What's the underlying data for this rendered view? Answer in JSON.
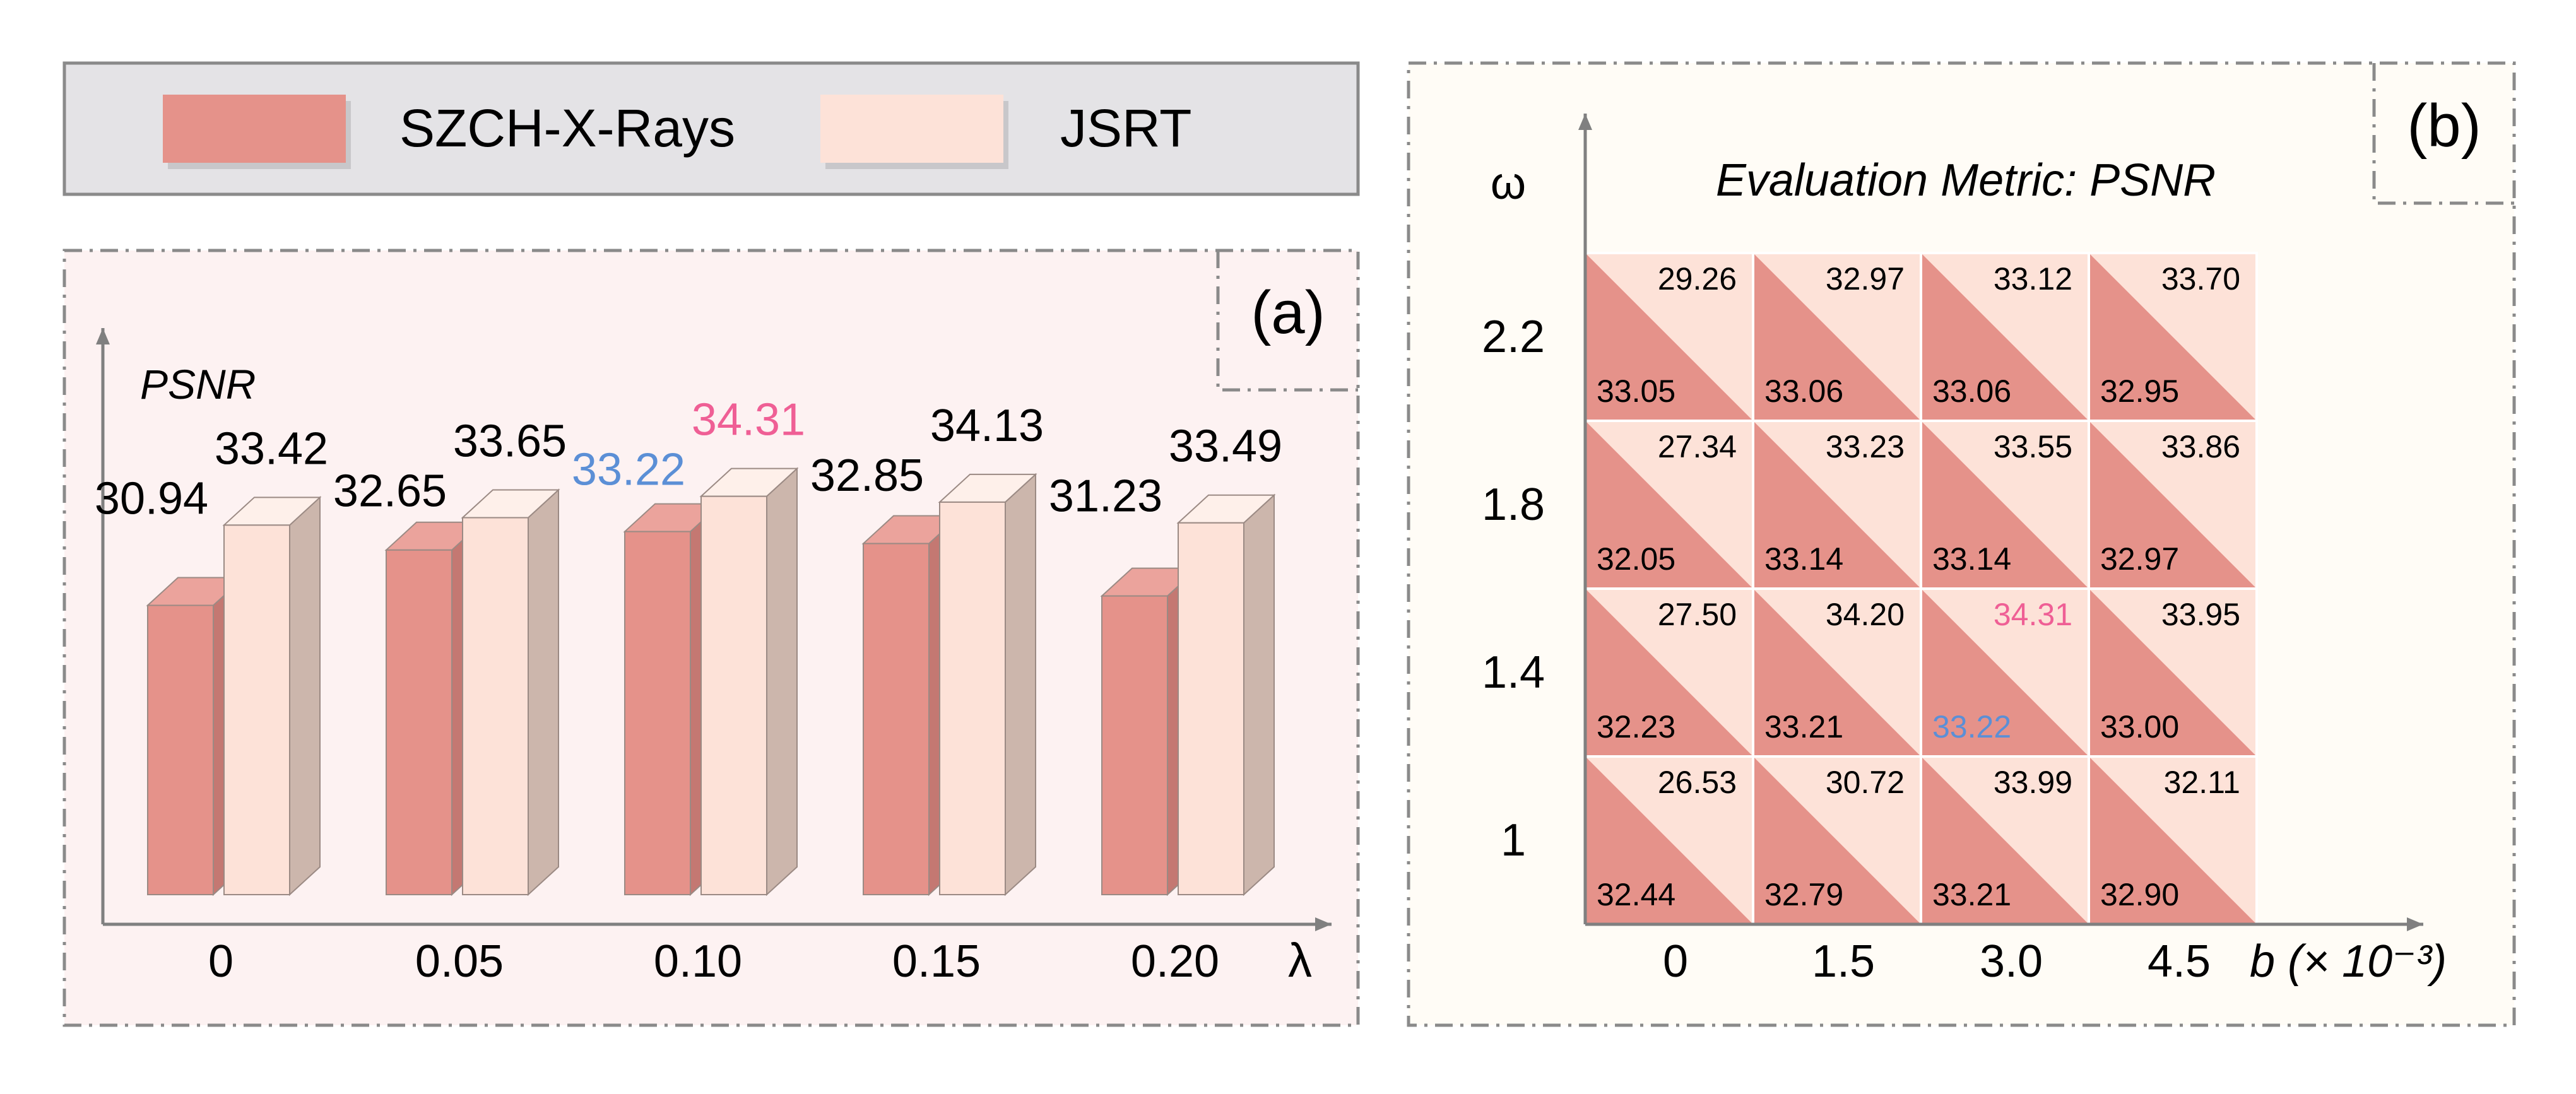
{
  "legend": {
    "items": [
      {
        "label": "SZCH-X-Rays",
        "color": "#e5928a"
      },
      {
        "label": "JSRT",
        "color": "#fde2d8"
      }
    ]
  },
  "colors": {
    "szch": "#e5928a",
    "szch_dark": "#c47872",
    "jsrt": "#fde2d8",
    "jsrt_side": "#ccb6ac",
    "panel_a_bg": "#fdf2f2",
    "panel_b_bg": "#fffcf6",
    "legend_bg": "#e4e3e6",
    "highlight_pink": "#ef5f95",
    "highlight_blue": "#5b8fd6",
    "axis": "#808080"
  },
  "panel_a": {
    "tag": "(a)"
  },
  "panel_b": {
    "tag": "(b)"
  },
  "chart_data": [
    {
      "type": "bar",
      "panel": "(a)",
      "ylabel": "PSNR",
      "xlabel": "λ",
      "categories": [
        "0",
        "0.05",
        "0.10",
        "0.15",
        "0.20"
      ],
      "series": [
        {
          "name": "SZCH-X-Rays",
          "values": [
            30.94,
            32.65,
            33.22,
            32.85,
            31.23
          ]
        },
        {
          "name": "JSRT",
          "values": [
            33.42,
            33.65,
            34.31,
            34.13,
            33.49
          ]
        }
      ],
      "value_labels": {
        "SZCH-X-Rays": [
          "30.94",
          "32.65",
          "33.22",
          "32.85",
          "31.23"
        ],
        "JSRT": [
          "33.42",
          "33.65",
          "34.31",
          "34.13",
          "33.49"
        ]
      },
      "highlight": {
        "category_index": 2
      },
      "legend": "top"
    },
    {
      "type": "heatmap",
      "panel": "(b)",
      "title": "Evaluation Metric: PSNR",
      "ylabel": "ω",
      "xlabel": "b (× 10⁻³)",
      "x": [
        "0",
        "1.5",
        "3.0",
        "4.5"
      ],
      "y": [
        "2.2",
        "1.8",
        "1.4",
        "1"
      ],
      "series": [
        {
          "name": "SZCH-X-Rays",
          "values": [
            [
              33.05,
              33.06,
              33.06,
              32.95
            ],
            [
              32.05,
              33.14,
              33.14,
              32.97
            ],
            [
              32.23,
              33.21,
              33.22,
              33.0
            ],
            [
              32.44,
              32.79,
              33.21,
              32.9
            ]
          ]
        },
        {
          "name": "JSRT",
          "values": [
            [
              29.26,
              32.97,
              33.12,
              33.7
            ],
            [
              27.34,
              33.23,
              33.55,
              33.86
            ],
            [
              27.5,
              34.2,
              34.31,
              33.95
            ],
            [
              26.53,
              30.72,
              33.99,
              32.11
            ]
          ]
        }
      ],
      "value_labels": {
        "SZCH-X-Rays": [
          [
            "33.05",
            "33.06",
            "33.06",
            "32.95"
          ],
          [
            "32.05",
            "33.14",
            "33.14",
            "32.97"
          ],
          [
            "32.23",
            "33.21",
            "33.22",
            "33.00"
          ],
          [
            "32.44",
            "32.79",
            "33.21",
            "32.90"
          ]
        ],
        "JSRT": [
          [
            "29.26",
            "32.97",
            "33.12",
            "33.70"
          ],
          [
            "27.34",
            "33.23",
            "33.55",
            "33.86"
          ],
          [
            "27.50",
            "34.20",
            "34.31",
            "33.95"
          ],
          [
            "26.53",
            "30.72",
            "33.99",
            "32.11"
          ]
        ]
      },
      "highlight": {
        "row": 2,
        "col": 2
      },
      "cell_split": "diagonal: SZCH-X-Rays lower-left triangle, JSRT upper-right triangle"
    }
  ]
}
